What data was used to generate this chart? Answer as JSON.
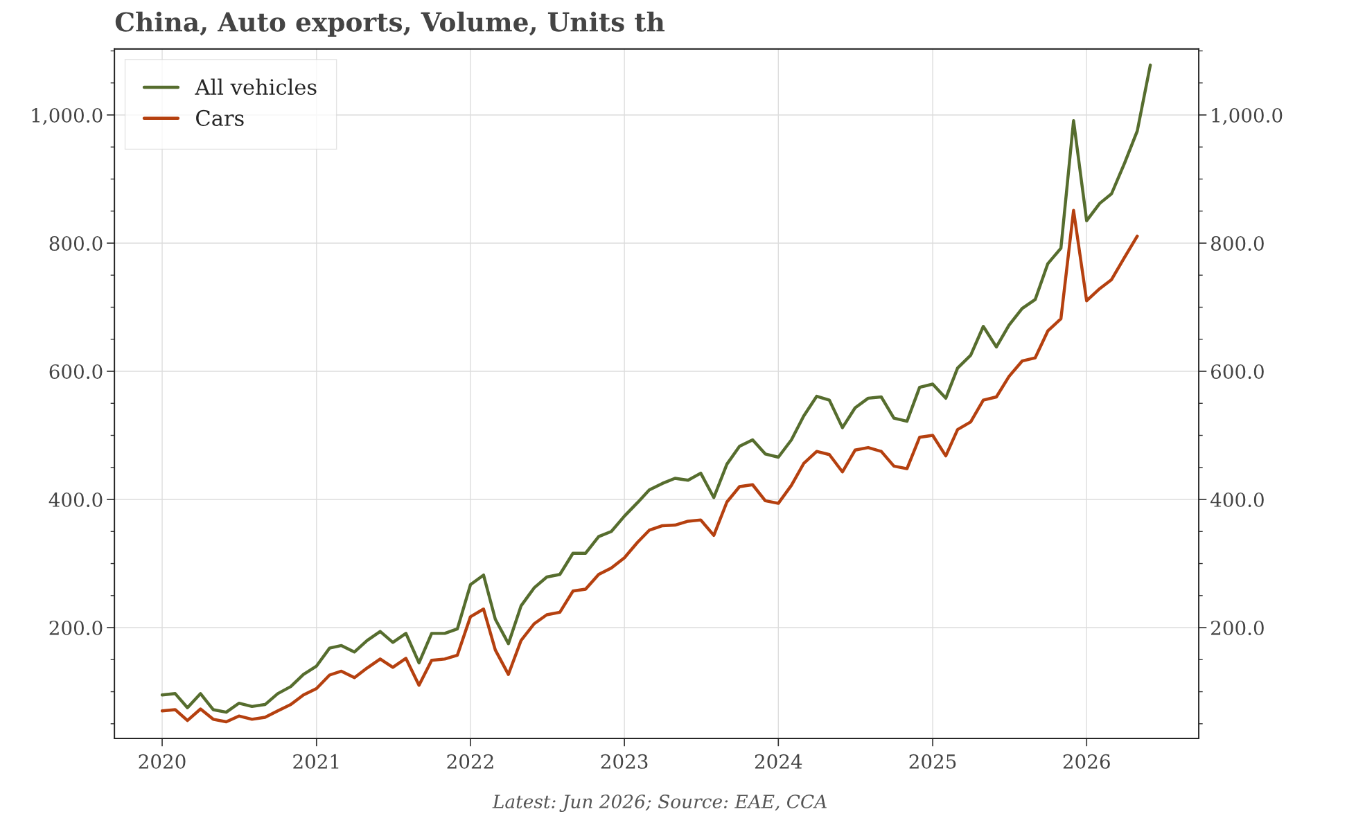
{
  "chart_data": {
    "type": "line",
    "title": "China, Auto exports, Volume, Units th",
    "annotations": [
      "Latest: Jun 2026; Source: EAE, CCA"
    ],
    "x": [
      "2020-01",
      "2020-02",
      "2020-03",
      "2020-04",
      "2020-05",
      "2020-06",
      "2020-07",
      "2020-08",
      "2020-09",
      "2020-10",
      "2020-11",
      "2020-12",
      "2021-01",
      "2021-02",
      "2021-03",
      "2021-04",
      "2021-05",
      "2021-06",
      "2021-07",
      "2021-08",
      "2021-09",
      "2021-10",
      "2021-11",
      "2021-12",
      "2022-01",
      "2022-02",
      "2022-03",
      "2022-04",
      "2022-05",
      "2022-06",
      "2022-07",
      "2022-08",
      "2022-09",
      "2022-10",
      "2022-11",
      "2022-12",
      "2023-01",
      "2023-02",
      "2023-03",
      "2023-04",
      "2023-05",
      "2023-06",
      "2023-07",
      "2023-08",
      "2023-09",
      "2023-10",
      "2023-11",
      "2023-12",
      "2024-01",
      "2024-02",
      "2024-03",
      "2024-04",
      "2024-05",
      "2024-06",
      "2024-07",
      "2024-08",
      "2024-09",
      "2024-10",
      "2024-11",
      "2024-12",
      "2025-01",
      "2025-02",
      "2025-03",
      "2025-04",
      "2025-05",
      "2025-06",
      "2025-07",
      "2025-08",
      "2025-09",
      "2025-10",
      "2025-11",
      "2025-12",
      "2026-01",
      "2026-02",
      "2026-03",
      "2026-04",
      "2026-05",
      "2026-06"
    ],
    "series": [
      {
        "name": "All vehicles",
        "color": "#566d2e",
        "values": [
          95,
          97,
          75,
          97,
          72,
          68,
          82,
          77,
          80,
          97,
          108,
          127,
          140,
          168,
          172,
          162,
          180,
          194,
          177,
          191,
          145,
          191,
          191,
          198,
          267,
          282,
          213,
          175,
          234,
          262,
          279,
          283,
          316,
          316,
          342,
          350,
          374,
          395,
          415,
          425,
          433,
          430,
          441,
          403,
          455,
          483,
          493,
          471,
          466,
          493,
          530,
          561,
          555,
          512,
          543,
          558,
          560,
          527,
          522,
          575,
          580,
          558,
          605,
          625,
          670,
          638,
          672,
          698,
          712,
          768,
          792,
          991,
          835,
          862,
          877,
          925,
          975,
          1078
        ]
      },
      {
        "name": "Cars",
        "color": "#b5400f",
        "values": [
          70,
          72,
          55,
          73,
          57,
          53,
          62,
          57,
          60,
          70,
          80,
          95,
          105,
          126,
          132,
          122,
          137,
          151,
          138,
          152,
          110,
          149,
          151,
          157,
          217,
          229,
          165,
          127,
          180,
          206,
          220,
          224,
          257,
          260,
          283,
          293,
          309,
          333,
          352,
          359,
          360,
          366,
          368,
          344,
          396,
          420,
          423,
          398,
          394,
          422,
          456,
          475,
          470,
          443,
          477,
          481,
          475,
          452,
          448,
          497,
          500,
          468,
          509,
          521,
          555,
          560,
          592,
          616,
          621,
          663,
          682,
          851,
          710,
          729,
          743,
          778,
          811,
          null
        ]
      }
    ],
    "xlim": [
      "2019-09-10",
      "2026-09-24"
    ],
    "xticks": [
      "2020",
      "2021",
      "2022",
      "2023",
      "2024",
      "2025",
      "2026"
    ],
    "ylim": [
      27,
      1103
    ],
    "yticks": [
      {
        "value": 200,
        "label": "200.0"
      },
      {
        "value": 400,
        "label": "400.0"
      },
      {
        "value": 600,
        "label": "600.0"
      },
      {
        "value": 800,
        "label": "800.0"
      },
      {
        "value": 1000,
        "label": "1,000.0"
      }
    ],
    "y2lim": [
      27,
      1103
    ],
    "y2ticks": [
      {
        "value": 200,
        "label": "200.0"
      },
      {
        "value": 400,
        "label": "400.0"
      },
      {
        "value": 600,
        "label": "600.0"
      },
      {
        "value": 800,
        "label": "800.0"
      },
      {
        "value": 1000,
        "label": "1,000.0"
      }
    ],
    "grid": true,
    "legend": "top left",
    "line_style": "solid",
    "marker": "none"
  }
}
